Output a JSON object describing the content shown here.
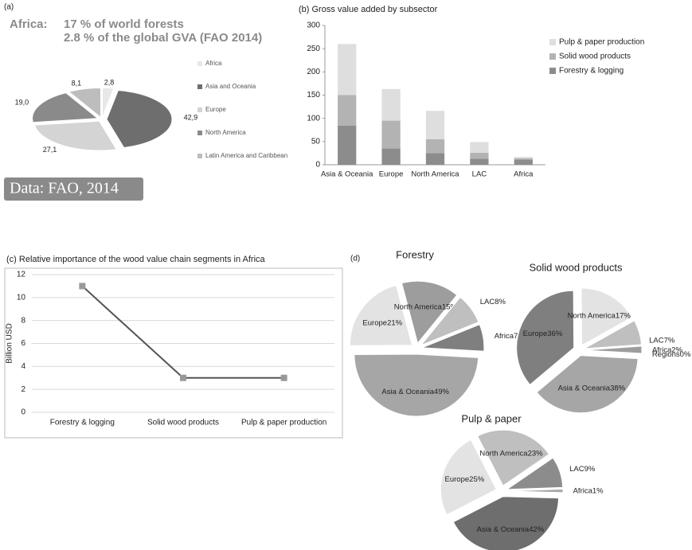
{
  "chart_data": [
    {
      "type": "pie",
      "panel_label": "(a)",
      "label": "Africa:",
      "title": "17 % of world forests",
      "subtitle": "2.8 % of the global GVA (FAO 2014)",
      "categories": [
        "Africa",
        "Asia and Oceania",
        "Europe",
        "North America",
        "Latin America and Caribbean"
      ],
      "values": [
        2.8,
        42.9,
        27.1,
        19.0,
        8.1
      ],
      "value_labels": [
        "2,8",
        "42,9",
        "27,1",
        "19,0",
        "8,1"
      ],
      "colors": [
        "#e8e8e8",
        "#6e6e6e",
        "#d4d4d4",
        "#8a8a8a",
        "#bdbdbd"
      ],
      "legend": true,
      "annotation": "Data: FAO, 2014"
    },
    {
      "type": "bar",
      "title": "(b) Gross value added by subsector",
      "categories": [
        "Asia & Oceania",
        "Europe",
        "North America",
        "LAC",
        "Africa"
      ],
      "series": [
        {
          "name": "Forestry & logging",
          "color": "#8c8c8c",
          "values": [
            84,
            35,
            25,
            13,
            11
          ]
        },
        {
          "name": "Solid wood products",
          "color": "#b3b3b3",
          "values": [
            66,
            60,
            30,
            13,
            3
          ]
        },
        {
          "name": "Pulp & paper production",
          "color": "#dedede",
          "values": [
            110,
            68,
            61,
            23,
            3
          ]
        }
      ],
      "ylim": [
        0,
        300
      ],
      "yticks": [
        0,
        50,
        100,
        150,
        200,
        250,
        300
      ],
      "stacked": true
    },
    {
      "type": "line",
      "title": "(c) Relative importance of the wood value chain segments in Africa",
      "ylabel": "Billion USD",
      "categories": [
        "Forestry & logging",
        "Solid wood products",
        "Pulp & paper production"
      ],
      "values": [
        11,
        3,
        3
      ],
      "color": "#555555",
      "marker_color": "#999999",
      "ylim": [
        0,
        12
      ],
      "yticks": [
        0,
        2,
        4,
        6,
        8,
        10,
        12
      ],
      "grid": true
    },
    {
      "type": "pie",
      "panel_label": "(d)",
      "title": "Forestry",
      "categories": [
        "Africa",
        "Asia & Oceania",
        "Europe",
        "North America",
        "LAC"
      ],
      "values": [
        7,
        49,
        21,
        15,
        8
      ],
      "value_labels": [
        "7%",
        "49%",
        "21%",
        "15%",
        "8%"
      ],
      "colors": [
        "#7f7f7f",
        "#a6a6a6",
        "#e3e3e3",
        "#9d9d9d",
        "#bfbfbf"
      ]
    },
    {
      "type": "pie",
      "title": "Solid wood products",
      "categories": [
        "Africa",
        "Regions",
        "Asia & Oceania",
        "Europe",
        "North America",
        "LAC"
      ],
      "values": [
        2,
        0,
        38,
        36,
        17,
        7
      ],
      "value_labels": [
        "2%",
        "0%",
        "38%",
        "36%",
        "17%",
        "7%"
      ],
      "colors": [
        "#9d9d9d",
        "#7f7f7f",
        "#a6a6a6",
        "#7f7f7f",
        "#e3e3e3",
        "#bfbfbf"
      ]
    },
    {
      "type": "pie",
      "title": "Pulp & paper",
      "categories": [
        "Africa",
        "Asia & Oceania",
        "Europe",
        "North America",
        "LAC"
      ],
      "values": [
        1,
        42,
        25,
        23,
        9
      ],
      "value_labels": [
        "1%",
        "42%",
        "25%",
        "23%",
        "9%"
      ],
      "colors": [
        "#a6a6a6",
        "#6e6e6e",
        "#e3e3e3",
        "#bfbfbf",
        "#8c8c8c"
      ]
    }
  ]
}
